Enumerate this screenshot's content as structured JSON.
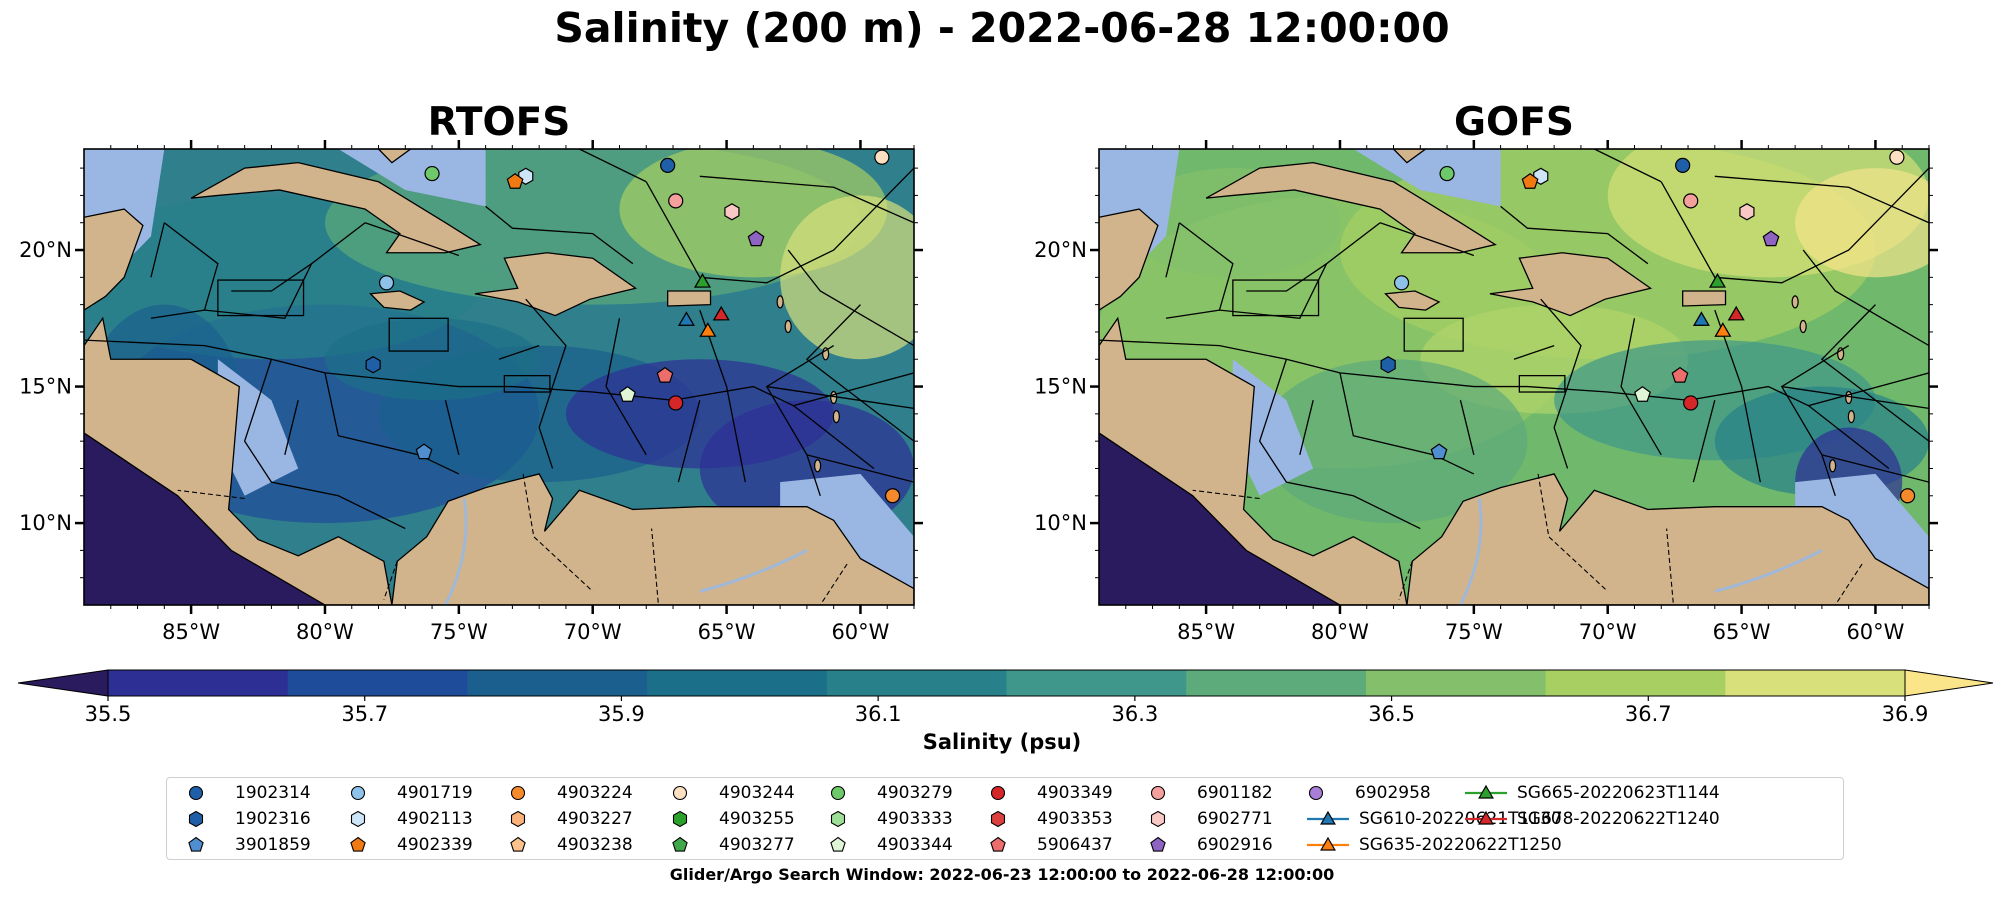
{
  "title": "Salinity (200 m) - 2022-06-28 12:00:00",
  "panels": [
    {
      "title": "RTOFS",
      "id": "rtofs"
    },
    {
      "title": "GOFS",
      "id": "gofs"
    }
  ],
  "map": {
    "lat_ticks": [
      "20°N",
      "15°N",
      "10°N"
    ],
    "lon_ticks": [
      "85°W",
      "80°W",
      "75°W",
      "70°W",
      "65°W",
      "60°W"
    ],
    "land_color": "#d2b48c",
    "shelf_color": "#9ab6e2",
    "deep_color": "#2a1a5e"
  },
  "colorbar": {
    "label": "Salinity (psu)",
    "tick_labels": [
      "35.5",
      "35.7",
      "35.9",
      "36.1",
      "36.3",
      "36.5",
      "36.7",
      "36.9"
    ],
    "colors": [
      "#2a1a5e",
      "#2e2f95",
      "#1f4c9a",
      "#1a5f8d",
      "#1c6f88",
      "#27808a",
      "#3e978a",
      "#5daa7a",
      "#84c06b",
      "#a7cf62",
      "#d7e07a",
      "#fae58a"
    ]
  },
  "legend": {
    "items": [
      {
        "label": "1902314",
        "marker": "circle",
        "color": "#1f5fa8"
      },
      {
        "label": "1902316",
        "marker": "hexagon",
        "color": "#1f5fa8"
      },
      {
        "label": "3901859",
        "marker": "pentagon",
        "color": "#4f8fd0"
      },
      {
        "label": "4901719",
        "marker": "circle",
        "color": "#8ec2ea"
      },
      {
        "label": "4902113",
        "marker": "hexagon",
        "color": "#cde5f6"
      },
      {
        "label": "4902339",
        "marker": "pentagon",
        "color": "#f07a12"
      },
      {
        "label": "4903224",
        "marker": "circle",
        "color": "#f58a2c"
      },
      {
        "label": "4903227",
        "marker": "hexagon",
        "color": "#f9b27a"
      },
      {
        "label": "4903238",
        "marker": "pentagon",
        "color": "#fbc28e"
      },
      {
        "label": "4903244",
        "marker": "circle",
        "color": "#fde0c2"
      },
      {
        "label": "4903255",
        "marker": "hexagon",
        "color": "#2ca02c"
      },
      {
        "label": "4903277",
        "marker": "pentagon",
        "color": "#3fa84a"
      },
      {
        "label": "4903279",
        "marker": "circle",
        "color": "#6ec96a"
      },
      {
        "label": "4903333",
        "marker": "hexagon",
        "color": "#9edf98"
      },
      {
        "label": "4903344",
        "marker": "pentagon",
        "color": "#dff5d6"
      },
      {
        "label": "4903349",
        "marker": "circle",
        "color": "#d62728"
      },
      {
        "label": "4903353",
        "marker": "hexagon",
        "color": "#d9403e"
      },
      {
        "label": "5906437",
        "marker": "pentagon",
        "color": "#ec6e6c"
      },
      {
        "label": "6901182",
        "marker": "circle",
        "color": "#f4a09c"
      },
      {
        "label": "6902771",
        "marker": "hexagon",
        "color": "#f8c8c4"
      },
      {
        "label": "6902916",
        "marker": "pentagon",
        "color": "#8e63c2"
      },
      {
        "label": "6902958",
        "marker": "circle",
        "color": "#a97ed6"
      },
      {
        "label": "SG610-20220621T1130",
        "marker": "triangle-line",
        "color": "#1f77b4"
      },
      {
        "label": "SG635-20220622T1250",
        "marker": "triangle-line",
        "color": "#ff7f0e"
      },
      {
        "label": "SG665-20220623T1144",
        "marker": "triangle-line",
        "color": "#2ca02c"
      },
      {
        "label": "SG678-20220622T1240",
        "marker": "triangle-line",
        "color": "#d62728"
      }
    ],
    "search_window": "Glider/Argo Search Window: 2022-06-23 12:00:00 to 2022-06-28 12:00:00"
  },
  "platforms": [
    {
      "id": "1902314",
      "lon": -67.2,
      "lat": 23.1
    },
    {
      "id": "1902316",
      "lon": -78.2,
      "lat": 15.8
    },
    {
      "id": "3901859",
      "lon": -76.3,
      "lat": 12.6
    },
    {
      "id": "4901719",
      "lon": -77.7,
      "lat": 18.8
    },
    {
      "id": "4902113",
      "lon": -72.5,
      "lat": 22.7
    },
    {
      "id": "4902339",
      "lon": -72.9,
      "lat": 22.5
    },
    {
      "id": "4903224",
      "lon": -58.8,
      "lat": 11.0
    },
    {
      "id": "4903244",
      "lon": -59.2,
      "lat": 23.4
    },
    {
      "id": "4903279",
      "lon": -76.0,
      "lat": 22.8
    },
    {
      "id": "4903344",
      "lon": -68.7,
      "lat": 14.7
    },
    {
      "id": "4903349",
      "lon": -66.9,
      "lat": 14.4
    },
    {
      "id": "5906437",
      "lon": -67.3,
      "lat": 15.4
    },
    {
      "id": "6901182",
      "lon": -66.9,
      "lat": 21.8
    },
    {
      "id": "6902771",
      "lon": -64.8,
      "lat": 21.4
    },
    {
      "id": "6902916",
      "lon": -63.9,
      "lat": 20.4
    }
  ],
  "gliders": [
    {
      "id": "SG610-20220621T1130",
      "lon": -66.5,
      "lat": 17.4
    },
    {
      "id": "SG635-20220622T1250",
      "lon": -65.7,
      "lat": 17.0
    },
    {
      "id": "SG665-20220623T1144",
      "lon": -65.9,
      "lat": 18.8
    },
    {
      "id": "SG678-20220622T1240",
      "lon": -65.2,
      "lat": 17.6
    }
  ]
}
